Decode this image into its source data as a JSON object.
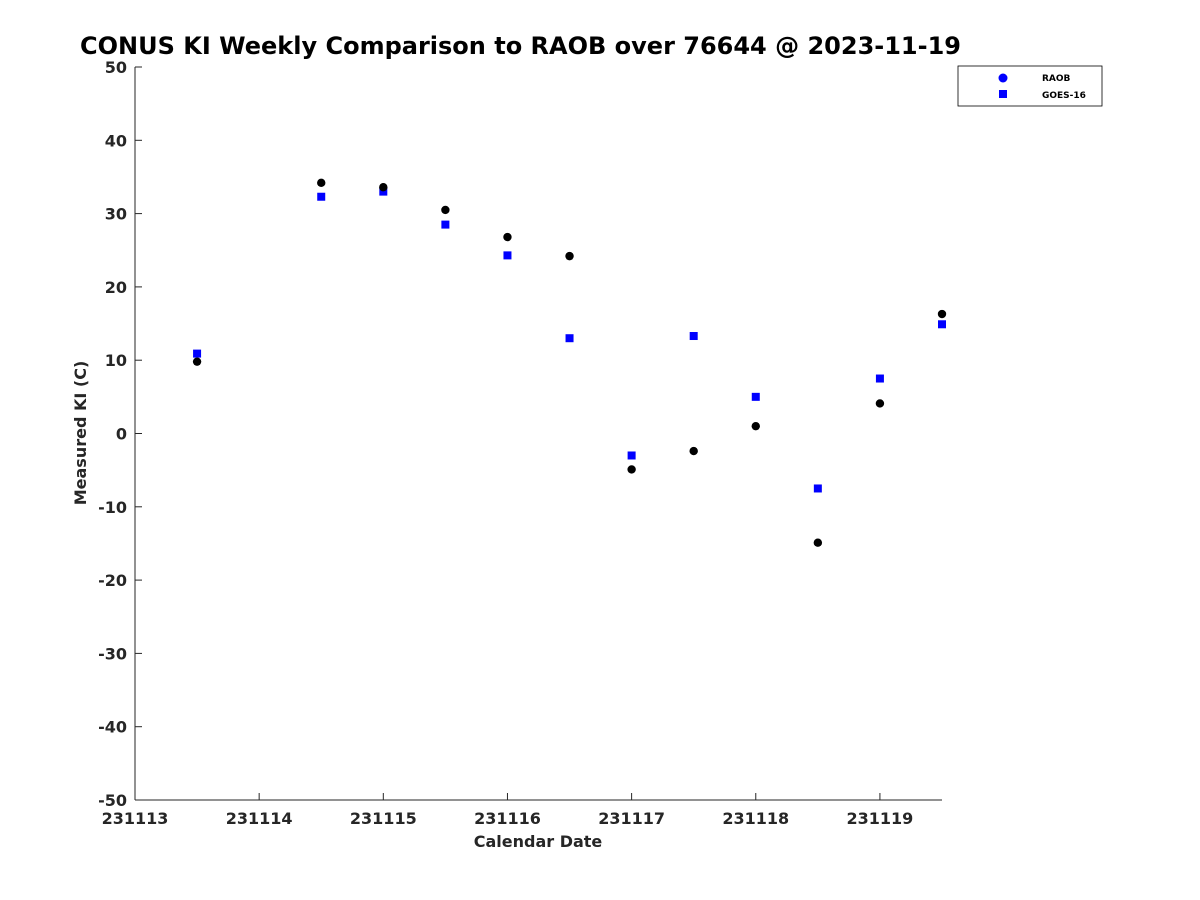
{
  "chart_data": {
    "type": "scatter",
    "title": "CONUS KI Weekly Comparison to RAOB over 76644 @ 2023-11-19",
    "xlabel": "Calendar Date",
    "ylabel": "Measured KI (C)",
    "xlim": [
      231113,
      231119.5
    ],
    "ylim": [
      -50,
      50
    ],
    "x_ticks": [
      231113,
      231114,
      231115,
      231116,
      231117,
      231118,
      231119
    ],
    "x_tick_labels": [
      "231113",
      "231114",
      "231115",
      "231116",
      "231117",
      "231118",
      "231119"
    ],
    "y_ticks": [
      -50,
      -40,
      -30,
      -20,
      -10,
      0,
      10,
      20,
      30,
      40,
      50
    ],
    "y_tick_labels": [
      "-50",
      "-40",
      "-30",
      "-20",
      "-10",
      "0",
      "10",
      "20",
      "30",
      "40",
      "50"
    ],
    "grid": false,
    "legend_position": "top-right",
    "series": [
      {
        "name": "RAOB",
        "marker": "circle",
        "color": "#000000",
        "legend_color": "#0000ff",
        "x": [
          231113.5,
          231114.5,
          231115,
          231115.5,
          231116,
          231116.5,
          231117,
          231117.5,
          231118,
          231118.5,
          231119,
          231119.5
        ],
        "y": [
          9.8,
          34.2,
          33.6,
          30.5,
          26.8,
          24.2,
          -4.9,
          -2.4,
          1.0,
          -14.9,
          4.1,
          16.3
        ]
      },
      {
        "name": "GOES-16",
        "marker": "square",
        "color": "#0000ff",
        "legend_color": "#0000ff",
        "x": [
          231113.5,
          231114.5,
          231115,
          231115.5,
          231116,
          231116.5,
          231117,
          231117.5,
          231118,
          231118.5,
          231119,
          231119.5
        ],
        "y": [
          10.9,
          32.3,
          33.0,
          28.5,
          24.3,
          13.0,
          -3.0,
          13.3,
          5.0,
          -7.5,
          7.5,
          14.9
        ]
      }
    ]
  }
}
